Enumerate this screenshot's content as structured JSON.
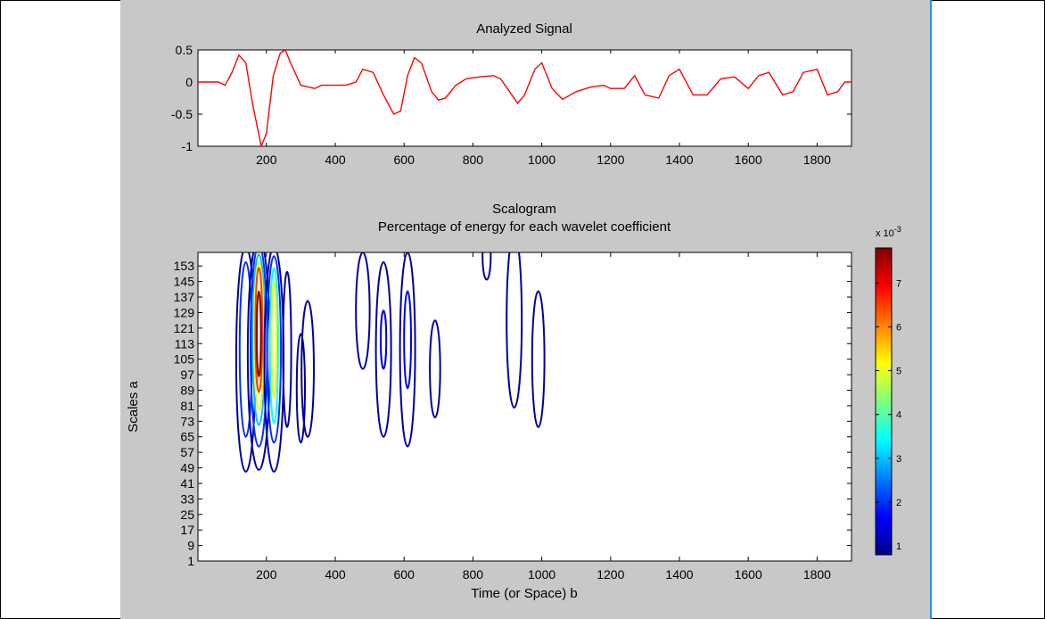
{
  "colors": {
    "panel_bg": "#c8c8c8",
    "signal_line": "#ff0000",
    "accent_line": "#2f8fd8"
  },
  "chart_data": [
    {
      "type": "line",
      "title": "Analyzed Signal",
      "xlim": [
        1,
        1900
      ],
      "ylim": [
        -1,
        0.5
      ],
      "x_ticks": [
        200,
        400,
        600,
        800,
        1000,
        1200,
        1400,
        1600,
        1800
      ],
      "y_ticks": [
        0.5,
        0,
        -0.5,
        -1
      ],
      "y_tick_labels": [
        "0.5",
        "0",
        "-0.5",
        "-1"
      ],
      "grid": false,
      "series": [
        {
          "color": "#ff0000",
          "x": [
            1,
            60,
            80,
            100,
            120,
            140,
            160,
            185,
            200,
            220,
            240,
            255,
            270,
            300,
            340,
            360,
            380,
            430,
            460,
            480,
            510,
            540,
            570,
            590,
            610,
            630,
            650,
            680,
            700,
            720,
            750,
            780,
            820,
            860,
            880,
            900,
            930,
            950,
            980,
            1000,
            1030,
            1060,
            1100,
            1140,
            1180,
            1200,
            1240,
            1270,
            1300,
            1340,
            1370,
            1400,
            1440,
            1480,
            1520,
            1560,
            1600,
            1630,
            1660,
            1700,
            1730,
            1760,
            1800,
            1830,
            1860,
            1880,
            1900
          ],
          "y": [
            0,
            0,
            -0.05,
            0.15,
            0.42,
            0.3,
            -0.35,
            -1.0,
            -0.8,
            0.1,
            0.45,
            0.5,
            0.3,
            -0.05,
            -0.1,
            -0.05,
            -0.05,
            -0.05,
            0.0,
            0.2,
            0.15,
            -0.2,
            -0.5,
            -0.45,
            0.1,
            0.38,
            0.3,
            -0.15,
            -0.28,
            -0.25,
            -0.05,
            0.05,
            0.08,
            0.1,
            0.05,
            -0.1,
            -0.33,
            -0.2,
            0.2,
            0.3,
            -0.1,
            -0.27,
            -0.15,
            -0.08,
            -0.05,
            -0.1,
            -0.1,
            0.1,
            -0.2,
            -0.25,
            0.1,
            0.2,
            -0.2,
            -0.2,
            0.05,
            0.08,
            -0.1,
            0.1,
            0.15,
            -0.2,
            -0.15,
            0.15,
            0.2,
            -0.2,
            -0.15,
            0.0,
            0.0
          ]
        }
      ]
    },
    {
      "type": "heatmap",
      "title": "Scalogram",
      "subtitle": "Percentage of energy for each wavelet coefficient",
      "xlabel": "Time (or Space) b",
      "ylabel": "Scales a",
      "xlim": [
        1,
        1900
      ],
      "ylim": [
        1,
        160
      ],
      "x_ticks": [
        200,
        400,
        600,
        800,
        1000,
        1200,
        1400,
        1600,
        1800
      ],
      "y_ticks": [
        1,
        9,
        17,
        25,
        33,
        41,
        49,
        57,
        65,
        73,
        81,
        89,
        97,
        105,
        113,
        121,
        129,
        137,
        145,
        153
      ],
      "colorbar": {
        "min": 0.8,
        "max": 7.8,
        "ticks": [
          1,
          2,
          3,
          4,
          5,
          6,
          7
        ],
        "multiplier": "x 10",
        "exponent": "-3"
      },
      "contours": [
        {
          "x": 140,
          "y": 105,
          "rx": 28,
          "ry": 58,
          "level": 1
        },
        {
          "x": 140,
          "y": 110,
          "rx": 18,
          "ry": 45,
          "level": 2
        },
        {
          "x": 178,
          "y": 108,
          "rx": 32,
          "ry": 60,
          "level": 1
        },
        {
          "x": 178,
          "y": 112,
          "rx": 24,
          "ry": 52,
          "level": 2
        },
        {
          "x": 178,
          "y": 115,
          "rx": 18,
          "ry": 44,
          "level": 3
        },
        {
          "x": 178,
          "y": 117,
          "rx": 14,
          "ry": 38,
          "level": 5
        },
        {
          "x": 178,
          "y": 120,
          "rx": 10,
          "ry": 32,
          "level": 6.5
        },
        {
          "x": 178,
          "y": 118,
          "rx": 6,
          "ry": 22,
          "level": 7.8
        },
        {
          "x": 222,
          "y": 105,
          "rx": 28,
          "ry": 58,
          "level": 1
        },
        {
          "x": 222,
          "y": 110,
          "rx": 20,
          "ry": 48,
          "level": 2
        },
        {
          "x": 222,
          "y": 112,
          "rx": 12,
          "ry": 40,
          "level": 3.5
        },
        {
          "x": 222,
          "y": 115,
          "rx": 7,
          "ry": 30,
          "level": 5
        },
        {
          "x": 260,
          "y": 110,
          "rx": 12,
          "ry": 40,
          "level": 1
        },
        {
          "x": 300,
          "y": 90,
          "rx": 12,
          "ry": 28,
          "level": 1
        },
        {
          "x": 320,
          "y": 100,
          "rx": 18,
          "ry": 35,
          "level": 1
        },
        {
          "x": 480,
          "y": 130,
          "rx": 20,
          "ry": 30,
          "level": 1
        },
        {
          "x": 540,
          "y": 110,
          "rx": 22,
          "ry": 45,
          "level": 1
        },
        {
          "x": 540,
          "y": 115,
          "rx": 8,
          "ry": 15,
          "level": 1.5
        },
        {
          "x": 610,
          "y": 110,
          "rx": 22,
          "ry": 50,
          "level": 1
        },
        {
          "x": 610,
          "y": 115,
          "rx": 10,
          "ry": 25,
          "level": 1.5
        },
        {
          "x": 690,
          "y": 100,
          "rx": 15,
          "ry": 25,
          "level": 1
        },
        {
          "x": 840,
          "y": 158,
          "rx": 12,
          "ry": 12,
          "level": 1
        },
        {
          "x": 920,
          "y": 125,
          "rx": 22,
          "ry": 45,
          "level": 1
        },
        {
          "x": 990,
          "y": 105,
          "rx": 18,
          "ry": 35,
          "level": 1
        }
      ]
    }
  ]
}
